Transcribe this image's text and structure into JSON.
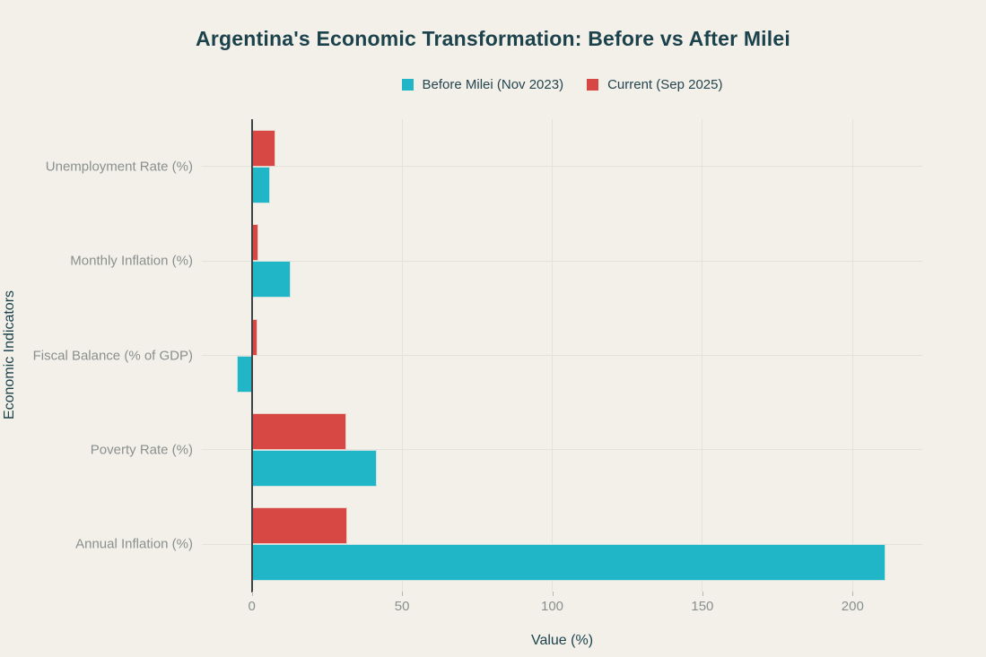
{
  "title": "Argentina's Economic Transformation: Before vs After Milei",
  "colors": {
    "background": "#f2f0e9",
    "before_series": "#20b5c7",
    "current_series": "#d74743",
    "title_text": "#1c424c",
    "muted_text": "#8a908e",
    "gridline": "#e4e2da",
    "zero_axis": "#3f4344"
  },
  "chart_data": {
    "type": "bar",
    "orientation": "horizontal",
    "title": "Argentina's Economic Transformation: Before vs After Milei",
    "xlabel": "Value (%)",
    "ylabel": "Economic Indicators",
    "categories": [
      "Unemployment Rate (%)",
      "Monthly Inflation (%)",
      "Fiscal Balance (% of GDP)",
      "Poverty Rate (%)",
      "Annual Inflation (%)"
    ],
    "series": [
      {
        "name": "Before Milei (Nov 2023)",
        "color": "#20b5c7",
        "values": [
          6.2,
          12.8,
          -5.0,
          41.7,
          211.0
        ]
      },
      {
        "name": "Current (Sep 2025)",
        "color": "#d74743",
        "values": [
          7.9,
          2.1,
          1.8,
          31.6,
          31.8
        ]
      }
    ],
    "x_ticks": [
      0,
      50,
      100,
      150,
      200
    ],
    "xlim": [
      -17,
      223
    ],
    "grid": true,
    "legend_position": "top-center"
  }
}
